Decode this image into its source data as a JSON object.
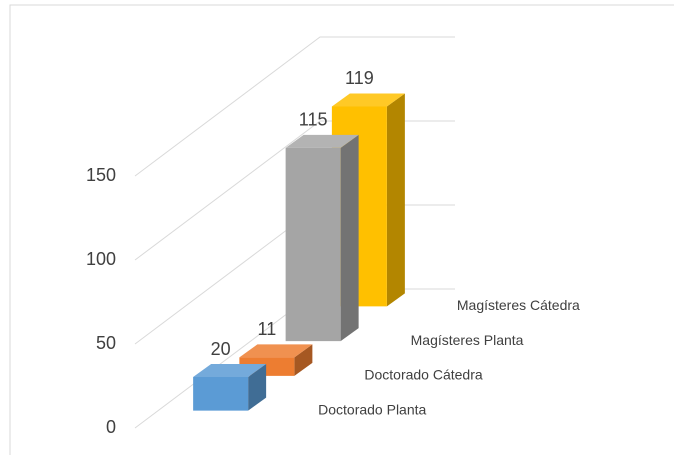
{
  "chart_data": {
    "type": "bar3d",
    "categories": [
      "Doctorado Planta",
      "Doctorado Cátedra",
      "Magísteres Planta",
      "Magísteres Cátedra"
    ],
    "values": [
      20,
      11,
      115,
      119
    ],
    "colors": [
      "#5b9bd5",
      "#ed7d31",
      "#a5a5a5",
      "#ffc000"
    ],
    "ylim": [
      0,
      150
    ],
    "yticks": [
      0,
      50,
      100,
      150
    ],
    "grid": true
  }
}
